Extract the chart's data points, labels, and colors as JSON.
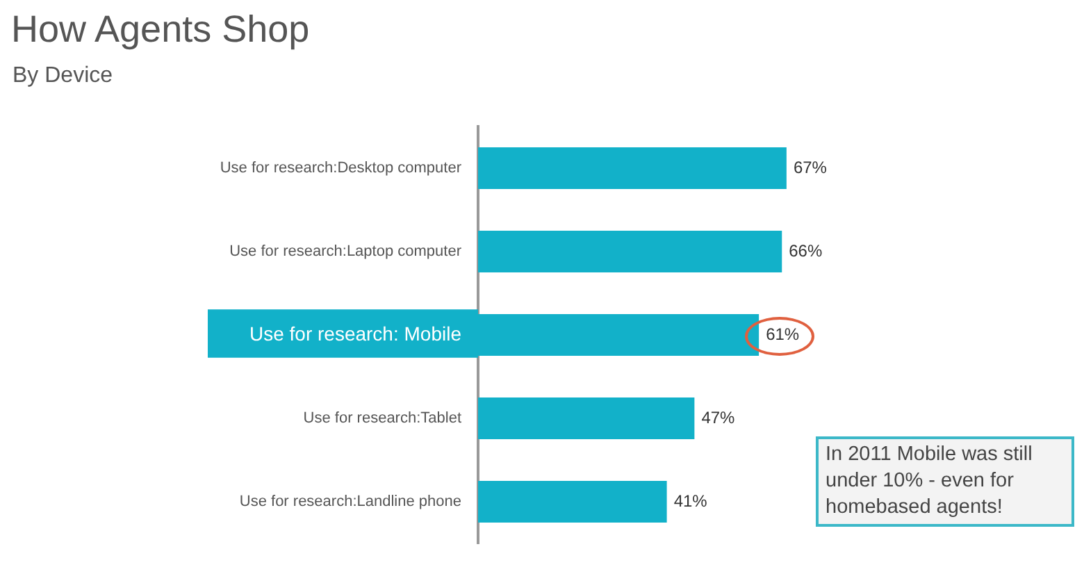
{
  "chart_data": {
    "type": "bar",
    "orientation": "horizontal",
    "title": "How Agents Shop",
    "subtitle": "By Device",
    "categories": [
      "Use for research:Desktop computer",
      "Use for research:Laptop computer",
      "Use for research: Mobile",
      "Use for research:Tablet",
      "Use for research:Landline phone"
    ],
    "values": [
      67,
      66,
      61,
      47,
      41
    ],
    "value_labels": [
      "67%",
      "66%",
      "61%",
      "47%",
      "41%"
    ],
    "color": "#12b1c9",
    "tick_labels": "y",
    "legend": false,
    "annotations": [
      "In 2011 Mobile was still under 10% - even for homebased agents!"
    ]
  }
}
